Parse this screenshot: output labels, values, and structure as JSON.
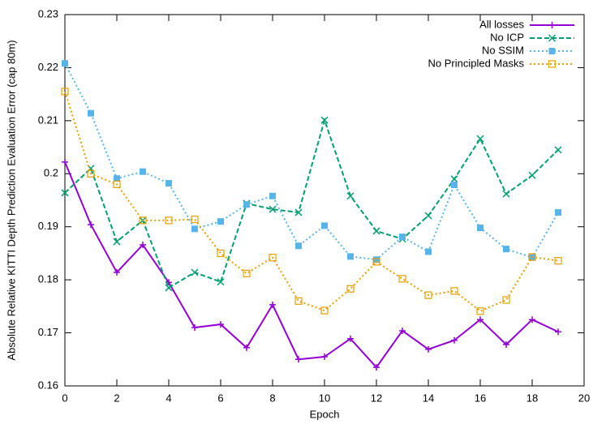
{
  "chart_data": {
    "type": "line",
    "x_label": "Epoch",
    "y_label": "Absolute Relative KITTI Depth Prediction Evaluation Error (cap 80m)",
    "x": [
      0,
      1,
      2,
      3,
      4,
      5,
      6,
      7,
      8,
      9,
      10,
      11,
      12,
      13,
      14,
      15,
      16,
      17,
      18,
      19
    ],
    "series": [
      {
        "name": "All losses",
        "color": "#9400d3",
        "dash": "solid",
        "marker": "plus",
        "values": [
          0.2022,
          0.1904,
          0.1814,
          0.1866,
          0.1795,
          0.171,
          0.1716,
          0.1672,
          0.1753,
          0.165,
          0.1655,
          0.1689,
          0.1635,
          0.1704,
          0.1669,
          0.1686,
          0.1725,
          0.1678,
          0.1725,
          0.1702
        ]
      },
      {
        "name": "No ICP",
        "color": "#009e73",
        "dash": "dashed",
        "marker": "cross",
        "values": [
          0.1964,
          0.201,
          0.1872,
          0.1912,
          0.1785,
          0.1814,
          0.1796,
          0.1944,
          0.1933,
          0.1927,
          0.2101,
          0.1958,
          0.1892,
          0.1877,
          0.1921,
          0.199,
          0.2066,
          0.1962,
          0.1997,
          0.2045
        ]
      },
      {
        "name": "No SSIM",
        "color": "#56b4e9",
        "dash": "dotted",
        "marker": "filled-square",
        "values": [
          0.2208,
          0.2114,
          0.1991,
          0.2004,
          0.1982,
          0.1896,
          0.191,
          0.1942,
          0.1958,
          0.1864,
          0.1902,
          0.1844,
          0.1838,
          0.1881,
          0.1853,
          0.1979,
          0.1898,
          0.1858,
          0.1842,
          0.1927
        ]
      },
      {
        "name": "No Principled Masks",
        "color": "#e69f00",
        "dash": "dotted",
        "marker": "open-square",
        "values": [
          0.2155,
          0.2,
          0.198,
          0.1912,
          0.1912,
          0.1914,
          0.185,
          0.1812,
          0.1842,
          0.176,
          0.1742,
          0.1783,
          0.1834,
          0.1802,
          0.1771,
          0.1779,
          0.1741,
          0.1762,
          0.1843,
          0.1836
        ]
      }
    ],
    "xlim": [
      0,
      20
    ],
    "xticks": [
      0,
      2,
      4,
      6,
      8,
      10,
      12,
      14,
      16,
      18,
      20
    ],
    "ylim": [
      0.16,
      0.23
    ],
    "yticks": [
      0.16,
      0.17,
      0.18,
      0.19,
      0.2,
      0.21,
      0.22,
      0.23
    ],
    "legend": "top-right",
    "grid": false
  }
}
